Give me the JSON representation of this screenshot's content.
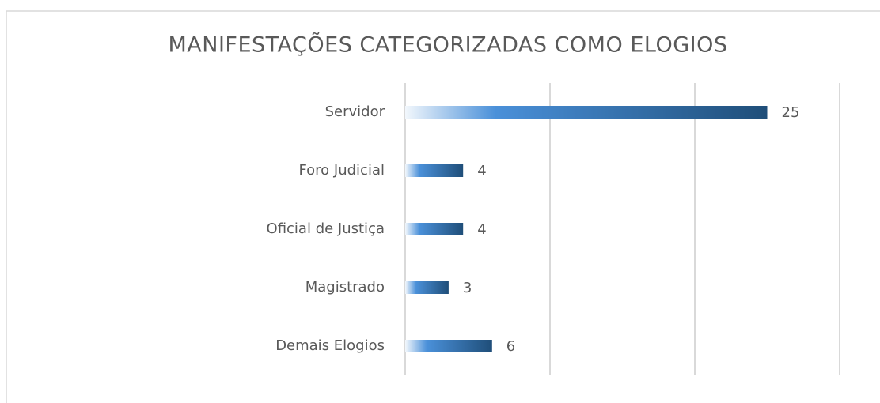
{
  "chart_data": {
    "type": "hbar",
    "title": "MANIFESTAÇÕES CATEGORIZADAS COMO ELOGIOS",
    "categories": [
      "Servidor",
      "Foro Judicial",
      "Oficial de Justiça",
      "Magistrado",
      "Demais Elogios"
    ],
    "values": [
      25,
      4,
      4,
      3,
      6
    ],
    "color": "#1f4e79",
    "xlim": [
      0,
      30
    ],
    "xticks": [
      0,
      10,
      20,
      30
    ],
    "grid": true
  }
}
